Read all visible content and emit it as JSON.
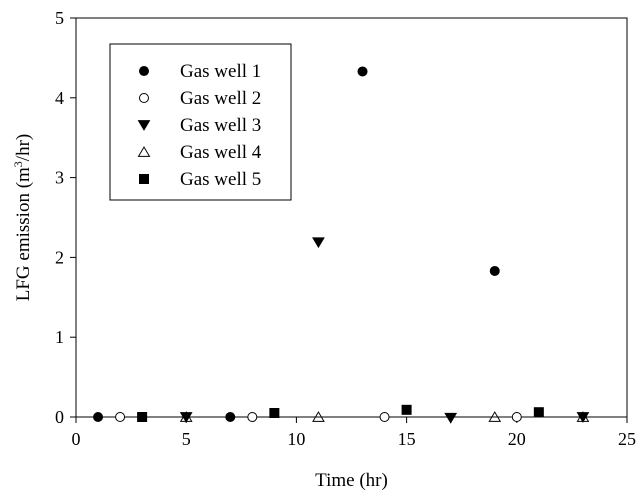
{
  "chart_data": {
    "type": "scatter",
    "title": "",
    "xlabel": "Time (hr)",
    "ylabel_main": "LFG emission (m",
    "ylabel_sup": "3",
    "ylabel_tail": "/hr)",
    "xlim": [
      0,
      25
    ],
    "ylim": [
      0,
      5
    ],
    "xticks": [
      "0",
      "5",
      "10",
      "15",
      "20",
      "25"
    ],
    "yticks": [
      "0",
      "1",
      "2",
      "3",
      "4",
      "5"
    ],
    "grid": false,
    "legend_position": "top-left",
    "series": [
      {
        "name": "Gas well 1",
        "marker": "filled-circle",
        "x": [
          1,
          7,
          13,
          19
        ],
        "y": [
          0,
          0,
          4.33,
          1.83
        ]
      },
      {
        "name": "Gas well 2",
        "marker": "open-circle",
        "x": [
          2,
          8,
          14,
          20
        ],
        "y": [
          0,
          0,
          0,
          0
        ]
      },
      {
        "name": "Gas well 3",
        "marker": "filled-triangle-down",
        "x": [
          5,
          11,
          17,
          23
        ],
        "y": [
          0,
          2.19,
          -0.01,
          0
        ]
      },
      {
        "name": "Gas well 4",
        "marker": "open-triangle-up",
        "x": [
          5,
          11,
          19,
          23
        ],
        "y": [
          0,
          0,
          0,
          0
        ]
      },
      {
        "name": "Gas well 5",
        "marker": "filled-square",
        "x": [
          3,
          9,
          15,
          21
        ],
        "y": [
          0,
          0.05,
          0.09,
          0.06
        ]
      }
    ]
  }
}
